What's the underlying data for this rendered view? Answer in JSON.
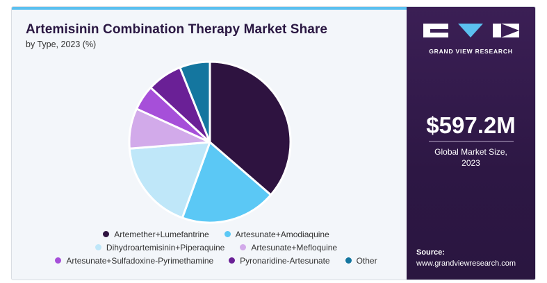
{
  "header": {
    "title": "Artemisinin Combination Therapy Market Share",
    "subtitle": "by Type, 2023 (%)"
  },
  "chart_data": {
    "type": "pie",
    "title": "Artemisinin Combination Therapy Market Share",
    "subtitle": "by Type, 2023 (%)",
    "start_angle_deg": 0,
    "direction": "clockwise",
    "legend_position": "bottom",
    "slices": [
      {
        "label": "Artemether+Lumefantrine",
        "value": 36,
        "color": "#2e1340"
      },
      {
        "label": "Artesunate+Amodiaquine",
        "value": 19,
        "color": "#5bc8f5"
      },
      {
        "label": "Dihydroartemisinin+Piperaquine",
        "value": 18,
        "color": "#bfe7f9"
      },
      {
        "label": "Artesunate+Mefloquine",
        "value": 8,
        "color": "#d2aaea"
      },
      {
        "label": "Artesunate+Sulfadoxine-Pyrimethamine",
        "value": 5,
        "color": "#a64fd9"
      },
      {
        "label": "Pyronaridine-Artesunate",
        "value": 7,
        "color": "#6a2096"
      },
      {
        "label": "Other",
        "value": 6,
        "color": "#14769f"
      }
    ]
  },
  "legend_rows": [
    [
      0,
      1
    ],
    [
      2,
      3
    ],
    [
      4,
      5,
      6
    ]
  ],
  "sidebar": {
    "logo_text": "GRAND VIEW RESEARCH",
    "market_size": "$597.2M",
    "market_label_line1": "Global Market Size,",
    "market_label_line2": "2023",
    "source_label": "Source:",
    "source_url": "www.grandviewresearch.com"
  }
}
